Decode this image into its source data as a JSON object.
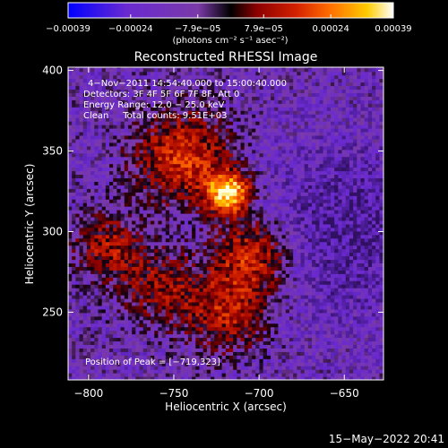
{
  "chart_data": {
    "type": "heatmap",
    "title": "Reconstructed RHESSI Image",
    "xlabel": "Heliocentric X (arcsec)",
    "ylabel": "Heliocentric Y (arcsec)",
    "xlim": [
      -812,
      -627
    ],
    "ylim": [
      208,
      402
    ],
    "xticks": [
      -800,
      -750,
      -700,
      -650
    ],
    "xtick_labels": [
      "−800",
      "−750",
      "−700",
      "−650"
    ],
    "yticks": [
      250,
      300,
      350,
      400
    ],
    "ytick_labels": [
      "250",
      "300",
      "350",
      "400"
    ],
    "colorbar": {
      "ticks": [
        -0.00039,
        -0.00024,
        -7.9e-05,
        7.9e-05,
        0.00024,
        0.00039
      ],
      "tick_labels": [
        "−0.00039",
        "−0.00024",
        "−7.9e−05",
        "7.9e−05",
        "0.00024",
        "0.00039"
      ],
      "range": [
        -0.00039,
        0.00039
      ],
      "unit_label": "(photons cm⁻² s⁻¹ asec⁻²)",
      "colors": [
        "#0000ff",
        "#6a2ad0",
        "#7a3aa8",
        "#000000",
        "#8b0000",
        "#d22000",
        "#ff6a00",
        "#ffcc00",
        "#ffffff"
      ]
    },
    "annotations": [
      "4−Nov−2011 14:54:40.000 to 15:00:40.000",
      "Detectors: 3F 4F 5F 6F 7F 8F, Att 0",
      "Energy Range: 12.0 − 25.0 keV",
      "Clean     Total counts: 9.51E+03"
    ],
    "peak_label": "Position of Peak = [−719,323]",
    "peak": [
      -719,
      323
    ],
    "timestamp": "15−May−2022 20:41"
  }
}
